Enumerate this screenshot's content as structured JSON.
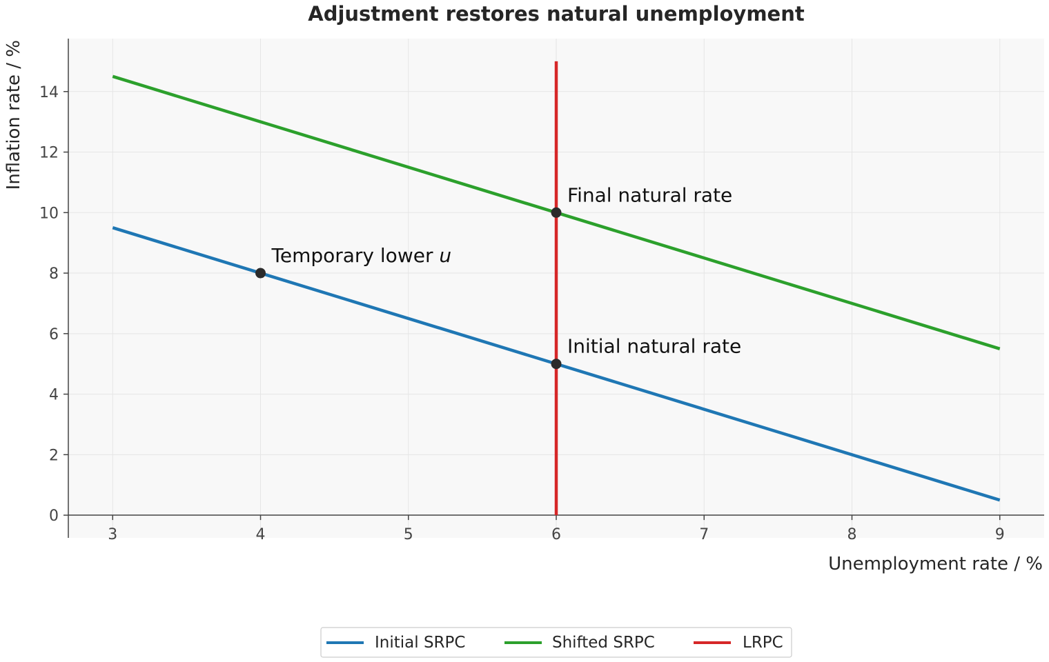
{
  "chart_data": {
    "type": "line",
    "title": "Adjustment restores natural unemployment",
    "xlabel": "Unemployment rate / %",
    "ylabel": "Inflation rate / %",
    "xlim": [
      2.7,
      9.3
    ],
    "ylim": [
      -0.75,
      15.75
    ],
    "xticks": [
      3,
      4,
      5,
      6,
      7,
      8,
      9
    ],
    "yticks": [
      0,
      2,
      4,
      6,
      8,
      10,
      12,
      14
    ],
    "grid": true,
    "legend_position": "bottom-center",
    "series": [
      {
        "name": "Initial SRPC",
        "color": "#1f77b4",
        "x": [
          3,
          9
        ],
        "y": [
          9.5,
          0.5
        ]
      },
      {
        "name": "Shifted SRPC",
        "color": "#2ca02c",
        "x": [
          3,
          9
        ],
        "y": [
          14.5,
          5.5
        ]
      },
      {
        "name": "LRPC",
        "color": "#d62728",
        "x": [
          6,
          6
        ],
        "y": [
          0,
          15
        ]
      }
    ],
    "points": [
      {
        "x": 4,
        "y": 8,
        "label_text": "Temporary lower ",
        "label_italic": "u"
      },
      {
        "x": 6,
        "y": 10,
        "label_text": "Final natural rate",
        "label_italic": ""
      },
      {
        "x": 6,
        "y": 5,
        "label_text": "Initial natural rate",
        "label_italic": ""
      }
    ]
  }
}
